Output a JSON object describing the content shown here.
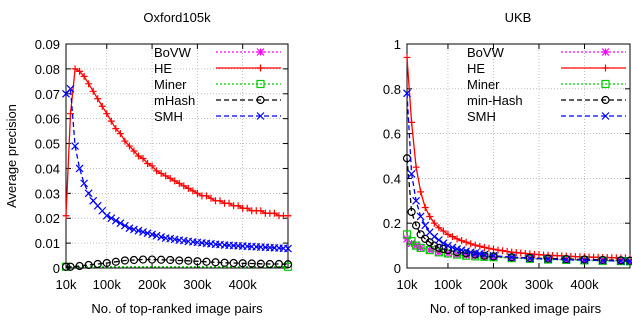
{
  "chart_data": [
    {
      "type": "line",
      "title": "Oxford105k",
      "xlabel": "No. of top-ranked image pairs",
      "ylabel": "Average precision",
      "xlim": [
        10,
        500
      ],
      "ylim": [
        0,
        0.09
      ],
      "xticks": [
        10,
        100,
        200,
        300,
        400
      ],
      "xtick_labels": [
        "10k",
        "100k",
        "200k",
        "300k",
        "400k"
      ],
      "yticks": [
        0,
        0.01,
        0.02,
        0.03,
        0.04,
        0.05,
        0.06,
        0.07,
        0.08,
        0.09
      ],
      "ytick_labels": [
        "0",
        "0.01",
        "0.02",
        "0.03",
        "0.04",
        "0.05",
        "0.06",
        "0.07",
        "0.08",
        "0.09"
      ],
      "grid": true,
      "legend_position": "top-right",
      "series": [
        {
          "name": "BoVW",
          "color": "#ff00ff",
          "marker": "star",
          "dash": "dotted",
          "x": [],
          "y": []
        },
        {
          "name": "HE",
          "color": "#ff0000",
          "marker": "plus",
          "dash": "solid",
          "x": [
            10,
            20,
            30,
            40,
            50,
            60,
            70,
            80,
            90,
            100,
            110,
            120,
            130,
            140,
            150,
            160,
            170,
            180,
            190,
            200,
            210,
            220,
            230,
            240,
            250,
            260,
            270,
            280,
            290,
            300,
            310,
            320,
            330,
            340,
            350,
            360,
            370,
            380,
            390,
            400,
            410,
            420,
            430,
            440,
            450,
            460,
            470,
            480,
            490,
            500
          ],
          "y": [
            0.021,
            0.062,
            0.08,
            0.079,
            0.077,
            0.074,
            0.071,
            0.068,
            0.065,
            0.062,
            0.059,
            0.056,
            0.054,
            0.051,
            0.049,
            0.047,
            0.045,
            0.044,
            0.042,
            0.041,
            0.039,
            0.038,
            0.037,
            0.036,
            0.035,
            0.034,
            0.033,
            0.032,
            0.031,
            0.03,
            0.029,
            0.029,
            0.028,
            0.027,
            0.027,
            0.026,
            0.026,
            0.025,
            0.025,
            0.024,
            0.024,
            0.023,
            0.023,
            0.023,
            0.022,
            0.022,
            0.022,
            0.021,
            0.021,
            0.021
          ]
        },
        {
          "name": "Miner",
          "color": "#00cc00",
          "marker": "square",
          "dash": "dotted",
          "x": [
            10,
            500
          ],
          "y": [
            0.0005,
            0.0005
          ]
        },
        {
          "name": "mHash",
          "color": "#000000",
          "marker": "circle",
          "dash": "dashed",
          "x": [
            10,
            20,
            40,
            60,
            80,
            100,
            120,
            140,
            160,
            180,
            200,
            220,
            240,
            260,
            280,
            300,
            320,
            340,
            360,
            380,
            400,
            420,
            440,
            460,
            480,
            500
          ],
          "y": [
            0.0005,
            0.0005,
            0.0008,
            0.0012,
            0.0016,
            0.002,
            0.0025,
            0.003,
            0.0032,
            0.0034,
            0.0034,
            0.0033,
            0.0032,
            0.003,
            0.0029,
            0.0027,
            0.0025,
            0.0023,
            0.0021,
            0.002,
            0.0019,
            0.0018,
            0.0017,
            0.0016,
            0.0016,
            0.0015
          ]
        },
        {
          "name": "SMH",
          "color": "#0000ff",
          "marker": "x",
          "dash": "dashed",
          "x": [
            10,
            20,
            30,
            40,
            50,
            60,
            70,
            80,
            90,
            100,
            110,
            120,
            130,
            140,
            150,
            160,
            170,
            180,
            190,
            200,
            210,
            220,
            230,
            240,
            250,
            260,
            270,
            280,
            290,
            300,
            310,
            320,
            330,
            340,
            350,
            360,
            370,
            380,
            390,
            400,
            410,
            420,
            430,
            440,
            450,
            460,
            470,
            480,
            490,
            500
          ],
          "y": [
            0.07,
            0.072,
            0.049,
            0.04,
            0.034,
            0.03,
            0.027,
            0.025,
            0.023,
            0.021,
            0.02,
            0.019,
            0.018,
            0.017,
            0.016,
            0.0155,
            0.015,
            0.0145,
            0.014,
            0.0135,
            0.013,
            0.0125,
            0.012,
            0.0118,
            0.0115,
            0.0112,
            0.011,
            0.0107,
            0.0105,
            0.0103,
            0.0101,
            0.0099,
            0.0097,
            0.0095,
            0.0094,
            0.0092,
            0.0091,
            0.009,
            0.0089,
            0.0088,
            0.0087,
            0.0086,
            0.0085,
            0.0084,
            0.0083,
            0.0082,
            0.0081,
            0.008,
            0.0079,
            0.0078
          ]
        }
      ]
    },
    {
      "type": "line",
      "title": "UKB",
      "xlabel": "No. of top-ranked image pairs",
      "ylabel": "",
      "xlim": [
        10,
        500
      ],
      "ylim": [
        0,
        1
      ],
      "xticks": [
        10,
        100,
        200,
        300,
        400
      ],
      "xtick_labels": [
        "10k",
        "100k",
        "200k",
        "300k",
        "400k"
      ],
      "yticks": [
        0,
        0.2,
        0.4,
        0.6,
        0.8,
        1
      ],
      "ytick_labels": [
        "0",
        "0.2",
        "0.4",
        "0.6",
        "0.8",
        "1"
      ],
      "grid": true,
      "legend_position": "top-right",
      "series": [
        {
          "name": "BoVW",
          "color": "#ff00ff",
          "marker": "star",
          "dash": "dotted",
          "x": [
            10,
            20,
            30,
            40,
            60,
            80,
            100,
            120,
            140,
            160,
            180,
            200,
            240,
            280,
            320,
            360,
            400,
            440,
            480,
            500
          ],
          "y": [
            0.13,
            0.11,
            0.1,
            0.09,
            0.08,
            0.07,
            0.065,
            0.06,
            0.057,
            0.055,
            0.052,
            0.05,
            0.046,
            0.043,
            0.04,
            0.038,
            0.036,
            0.034,
            0.032,
            0.031
          ]
        },
        {
          "name": "HE",
          "color": "#ff0000",
          "marker": "plus",
          "dash": "solid",
          "x": [
            10,
            20,
            30,
            40,
            50,
            60,
            70,
            80,
            90,
            100,
            110,
            120,
            130,
            140,
            150,
            160,
            170,
            180,
            190,
            200,
            210,
            220,
            230,
            240,
            250,
            260,
            270,
            280,
            290,
            300,
            310,
            320,
            330,
            340,
            350,
            360,
            370,
            380,
            390,
            400,
            410,
            420,
            430,
            440,
            450,
            460,
            470,
            480,
            490,
            500
          ],
          "y": [
            0.94,
            0.65,
            0.45,
            0.34,
            0.27,
            0.23,
            0.2,
            0.18,
            0.165,
            0.15,
            0.14,
            0.13,
            0.122,
            0.115,
            0.108,
            0.102,
            0.097,
            0.092,
            0.088,
            0.084,
            0.08,
            0.077,
            0.074,
            0.071,
            0.069,
            0.067,
            0.065,
            0.063,
            0.061,
            0.06,
            0.058,
            0.057,
            0.056,
            0.055,
            0.054,
            0.053,
            0.052,
            0.051,
            0.05,
            0.05,
            0.049,
            0.048,
            0.048,
            0.047,
            0.047,
            0.046,
            0.046,
            0.045,
            0.045,
            0.045
          ]
        },
        {
          "name": "Miner",
          "color": "#00cc00",
          "marker": "square",
          "dash": "dotted",
          "x": [
            10,
            20,
            30,
            40,
            60,
            80,
            100,
            120,
            140,
            160,
            180,
            200,
            240,
            280,
            320,
            360,
            400,
            440,
            480,
            500
          ],
          "y": [
            0.15,
            0.12,
            0.1,
            0.09,
            0.08,
            0.07,
            0.065,
            0.06,
            0.055,
            0.052,
            0.05,
            0.048,
            0.044,
            0.041,
            0.038,
            0.036,
            0.034,
            0.032,
            0.031,
            0.03
          ]
        },
        {
          "name": "min-Hash",
          "color": "#000000",
          "marker": "circle",
          "dash": "dashed",
          "x": [
            10,
            20,
            30,
            40,
            50,
            60,
            70,
            80,
            90,
            100,
            120,
            140,
            160,
            180,
            200,
            240,
            280,
            320,
            360,
            400,
            440,
            480,
            500
          ],
          "y": [
            0.49,
            0.25,
            0.19,
            0.15,
            0.13,
            0.115,
            0.1,
            0.09,
            0.085,
            0.08,
            0.07,
            0.065,
            0.06,
            0.055,
            0.052,
            0.048,
            0.045,
            0.042,
            0.04,
            0.038,
            0.036,
            0.034,
            0.033
          ]
        },
        {
          "name": "SMH",
          "color": "#0000ff",
          "marker": "x",
          "dash": "dashed",
          "x": [
            10,
            20,
            30,
            40,
            50,
            60,
            70,
            80,
            90,
            100,
            110,
            120,
            130,
            140,
            150,
            160,
            170,
            180,
            200,
            240,
            280,
            320,
            360,
            400,
            440,
            480,
            500
          ],
          "y": [
            0.78,
            0.42,
            0.3,
            0.23,
            0.19,
            0.16,
            0.14,
            0.125,
            0.11,
            0.1,
            0.092,
            0.085,
            0.08,
            0.075,
            0.07,
            0.067,
            0.064,
            0.06,
            0.055,
            0.048,
            0.043,
            0.04,
            0.037,
            0.035,
            0.033,
            0.031,
            0.03
          ]
        }
      ]
    }
  ]
}
